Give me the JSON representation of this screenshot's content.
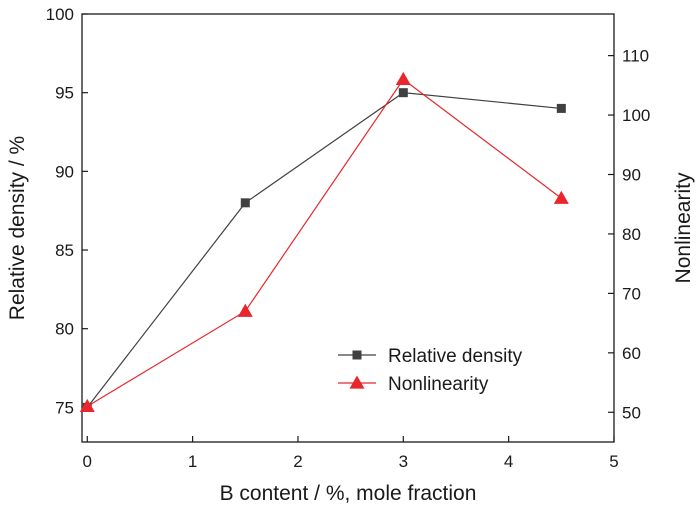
{
  "chart_data": {
    "type": "line",
    "xlabel": "B content / %, mole fraction",
    "ylabel": "Relative density / %",
    "y2label": "Nonlinearity",
    "xlim": [
      -0.05,
      5
    ],
    "ylim": [
      72.8,
      100
    ],
    "y2lim": [
      45,
      117
    ],
    "x_ticks": [
      0,
      1,
      2,
      3,
      4,
      5
    ],
    "y_ticks": [
      75,
      80,
      85,
      90,
      95,
      100
    ],
    "y2_ticks": [
      50,
      60,
      70,
      80,
      90,
      100,
      110
    ],
    "legend_position": "lower-right",
    "series": [
      {
        "name": "Relative density",
        "axis": "left",
        "marker": "square",
        "color": "#404040",
        "x": [
          0,
          1.5,
          3,
          4.5
        ],
        "y": [
          75,
          88,
          95,
          94
        ]
      },
      {
        "name": "Nonlinearity",
        "axis": "right",
        "marker": "triangle",
        "color": "#e8262b",
        "x": [
          0,
          1.5,
          3,
          4.5
        ],
        "y": [
          51,
          67,
          106,
          86
        ]
      }
    ]
  }
}
